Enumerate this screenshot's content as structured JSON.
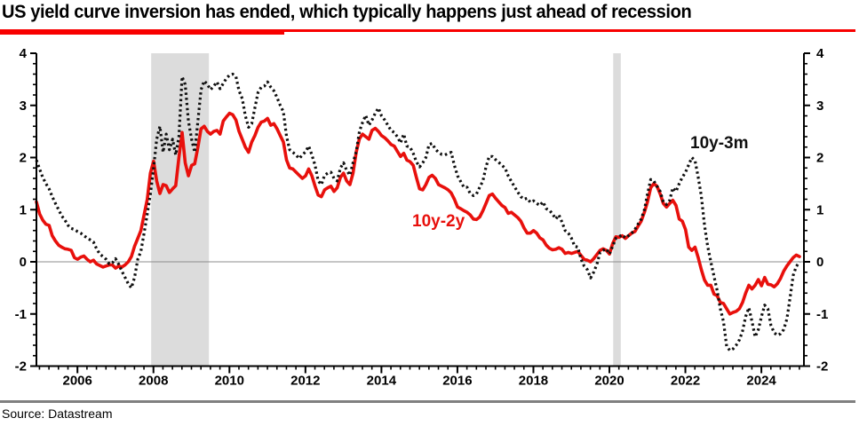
{
  "header": {
    "title": "US yield curve inversion has ended, which typically happens just ahead of recession"
  },
  "footer": {
    "source": "Source: Datastream"
  },
  "colors": {
    "accent_red": "#e8100c",
    "underline_red": "#f80000",
    "series_black": "#101010",
    "recession_band": "#dcdcdc",
    "zero_line": "#8c8c8c",
    "divider_gray": "#808080",
    "axis": "#000000"
  },
  "chart_data": {
    "type": "line",
    "title": "US yield curve inversion has ended, which typically happens just ahead of recession",
    "xlabel": "",
    "ylabel": "",
    "x_unit": "year",
    "y_unit": "percentage points",
    "x_range": [
      2004.92,
      2025.12
    ],
    "y_range": [
      -2,
      4
    ],
    "x_ticks_labeled": [
      2006,
      2008,
      2010,
      2012,
      2014,
      2016,
      2018,
      2020,
      2022,
      2024
    ],
    "x_minor_tick_step": 0.25,
    "y_ticks_labeled": [
      -2,
      -1,
      0,
      1,
      2,
      3,
      4
    ],
    "y_minor_tick_step": 0.2,
    "y_axis_sides": "both",
    "grid": "zero-line-only",
    "legend_position": "inline-labels",
    "recession_bands": [
      {
        "from": 2007.94,
        "to": 2009.46
      },
      {
        "from": 2020.1,
        "to": 2020.3
      }
    ],
    "x_start": 2004.92,
    "x_step_years": 0.0833333,
    "series": [
      {
        "name": "10y-2y",
        "label": "10y-2y",
        "color": "#e8100c",
        "style": "solid",
        "values": [
          1.15,
          0.92,
          0.8,
          0.72,
          0.7,
          0.5,
          0.4,
          0.32,
          0.28,
          0.25,
          0.24,
          0.22,
          0.08,
          0.05,
          0.09,
          0.11,
          0.05,
          0.0,
          0.03,
          -0.04,
          -0.07,
          -0.1,
          -0.08,
          -0.06,
          -0.06,
          -0.12,
          -0.08,
          -0.1,
          -0.06,
          0.0,
          0.1,
          0.3,
          0.45,
          0.6,
          0.9,
          1.2,
          1.7,
          1.93,
          1.55,
          1.31,
          1.48,
          1.46,
          1.33,
          1.4,
          1.46,
          2.0,
          2.48,
          1.9,
          1.65,
          1.85,
          1.88,
          2.2,
          2.55,
          2.6,
          2.5,
          2.45,
          2.5,
          2.52,
          2.45,
          2.7,
          2.78,
          2.85,
          2.82,
          2.72,
          2.5,
          2.35,
          2.2,
          2.1,
          2.3,
          2.42,
          2.58,
          2.68,
          2.7,
          2.75,
          2.62,
          2.65,
          2.55,
          2.42,
          2.3,
          1.95,
          1.8,
          1.78,
          1.72,
          1.66,
          1.6,
          1.65,
          1.78,
          1.65,
          1.45,
          1.28,
          1.25,
          1.38,
          1.42,
          1.45,
          1.35,
          1.42,
          1.62,
          1.7,
          1.55,
          1.48,
          1.7,
          2.1,
          2.36,
          2.45,
          2.4,
          2.35,
          2.52,
          2.56,
          2.5,
          2.42,
          2.38,
          2.32,
          2.25,
          2.22,
          2.12,
          2.02,
          2.08,
          1.95,
          1.92,
          1.85,
          1.62,
          1.4,
          1.38,
          1.48,
          1.62,
          1.66,
          1.6,
          1.48,
          1.45,
          1.42,
          1.38,
          1.32,
          1.2,
          1.05,
          1.02,
          0.98,
          0.95,
          0.9,
          0.82,
          0.81,
          0.86,
          0.98,
          1.12,
          1.27,
          1.3,
          1.22,
          1.15,
          1.08,
          1.04,
          0.93,
          0.95,
          0.9,
          0.85,
          0.78,
          0.65,
          0.55,
          0.55,
          0.6,
          0.55,
          0.46,
          0.42,
          0.32,
          0.26,
          0.23,
          0.24,
          0.27,
          0.24,
          0.16,
          0.18,
          0.16,
          0.18,
          0.2,
          0.12,
          0.05,
          0.03,
          0.0,
          0.06,
          0.14,
          0.22,
          0.25,
          0.22,
          0.15,
          0.35,
          0.48,
          0.47,
          0.5,
          0.45,
          0.5,
          0.55,
          0.58,
          0.68,
          0.78,
          0.95,
          1.15,
          1.42,
          1.5,
          1.45,
          1.3,
          1.12,
          1.05,
          1.12,
          1.18,
          1.08,
          0.82,
          0.78,
          0.62,
          0.28,
          0.22,
          0.28,
          0.08,
          -0.15,
          -0.35,
          -0.45,
          -0.45,
          -0.62,
          -0.65,
          -0.78,
          -0.8,
          -0.9,
          -1.0,
          -0.97,
          -0.95,
          -0.9,
          -0.78,
          -0.6,
          -0.45,
          -0.52,
          -0.45,
          -0.34,
          -0.46,
          -0.3,
          -0.43,
          -0.44,
          -0.48,
          -0.42,
          -0.32,
          -0.18,
          -0.08,
          0.0,
          0.08,
          0.13,
          0.1
        ]
      },
      {
        "name": "10y-3m",
        "label": "10y-3m",
        "color": "#101010",
        "style": "dotted",
        "values": [
          1.95,
          1.78,
          1.62,
          1.5,
          1.4,
          1.25,
          1.12,
          1.0,
          0.88,
          0.8,
          0.7,
          0.64,
          0.62,
          0.58,
          0.55,
          0.5,
          0.46,
          0.42,
          0.38,
          0.25,
          0.15,
          0.1,
          0.05,
          -0.04,
          -0.02,
          0.06,
          -0.05,
          -0.18,
          -0.3,
          -0.42,
          -0.5,
          -0.3,
          0.05,
          0.2,
          0.55,
          0.92,
          1.3,
          1.8,
          2.35,
          2.6,
          2.1,
          2.45,
          2.15,
          2.35,
          2.05,
          2.4,
          3.55,
          3.4,
          2.7,
          2.35,
          2.1,
          2.7,
          3.3,
          3.47,
          3.4,
          3.3,
          3.37,
          3.45,
          3.32,
          3.42,
          3.52,
          3.58,
          3.6,
          3.55,
          3.28,
          3.13,
          2.8,
          2.58,
          2.65,
          2.95,
          3.25,
          3.35,
          3.37,
          3.45,
          3.35,
          3.28,
          3.15,
          3.0,
          2.88,
          2.4,
          2.15,
          2.1,
          2.05,
          1.98,
          2.05,
          2.11,
          2.22,
          2.05,
          1.85,
          1.55,
          1.48,
          1.66,
          1.7,
          1.72,
          1.6,
          1.55,
          1.8,
          1.9,
          1.75,
          1.66,
          1.9,
          2.11,
          2.5,
          2.67,
          2.81,
          2.62,
          2.72,
          2.85,
          2.95,
          2.8,
          2.72,
          2.62,
          2.52,
          2.48,
          2.4,
          2.28,
          2.45,
          2.22,
          2.2,
          2.08,
          1.92,
          1.82,
          1.9,
          2.0,
          2.25,
          2.27,
          2.16,
          2.1,
          2.06,
          2.05,
          2.08,
          2.1,
          1.85,
          1.65,
          1.54,
          1.43,
          1.43,
          1.31,
          1.27,
          1.3,
          1.43,
          1.55,
          1.82,
          2.02,
          2.02,
          1.96,
          1.91,
          1.85,
          1.8,
          1.65,
          1.54,
          1.44,
          1.34,
          1.25,
          1.2,
          1.22,
          1.14,
          1.17,
          1.12,
          1.08,
          1.15,
          1.02,
          0.99,
          0.92,
          0.82,
          0.9,
          0.76,
          0.6,
          0.55,
          0.45,
          0.3,
          0.28,
          0.05,
          -0.08,
          -0.15,
          -0.31,
          -0.2,
          -0.05,
          0.18,
          0.22,
          0.25,
          0.15,
          0.3,
          0.45,
          0.48,
          0.52,
          0.46,
          0.5,
          0.55,
          0.62,
          0.72,
          0.82,
          1.0,
          1.3,
          1.58,
          1.55,
          1.45,
          1.35,
          1.15,
          1.1,
          1.18,
          1.42,
          1.35,
          1.5,
          1.62,
          1.72,
          1.86,
          2.0,
          1.94,
          1.62,
          1.26,
          0.7,
          0.3,
          0.0,
          -0.28,
          -0.55,
          -0.9,
          -1.15,
          -1.62,
          -1.7,
          -1.67,
          -1.6,
          -1.5,
          -1.33,
          -1.05,
          -0.88,
          -1.14,
          -1.44,
          -1.3,
          -1.05,
          -0.83,
          -0.9,
          -1.22,
          -1.36,
          -1.41,
          -1.38,
          -1.3,
          -1.1,
          -0.7,
          -0.26,
          -0.09,
          0.0
        ]
      }
    ]
  }
}
